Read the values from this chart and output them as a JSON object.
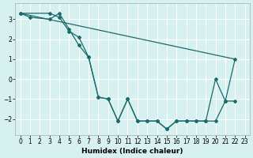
{
  "xlabel": "Humidex (Indice chaleur)",
  "background_color": "#d7f0f0",
  "grid_color": "#ffffff",
  "line_color": "#1a6b6b",
  "ylim": [
    -2.8,
    3.8
  ],
  "xlim": [
    -0.5,
    23.5
  ],
  "yticks": [
    -2,
    -1,
    0,
    1,
    2,
    3
  ],
  "xticks": [
    0,
    1,
    2,
    3,
    4,
    5,
    6,
    7,
    8,
    9,
    10,
    11,
    12,
    13,
    14,
    15,
    16,
    17,
    18,
    19,
    20,
    21,
    22,
    23
  ],
  "line1_x": [
    0,
    1,
    3,
    4,
    5,
    6,
    7,
    8,
    9,
    10,
    11,
    12,
    13,
    14,
    15,
    16,
    17,
    18,
    19,
    20,
    21,
    22
  ],
  "line1_y": [
    3.3,
    3.1,
    3.0,
    3.3,
    2.5,
    1.7,
    1.1,
    -0.9,
    -1.0,
    -2.1,
    -1.0,
    -2.1,
    -2.1,
    -2.1,
    -2.5,
    -2.1,
    -2.1,
    -2.1,
    -2.1,
    0.0,
    -1.1,
    1.0
  ],
  "line2_x": [
    0,
    3,
    4,
    5,
    6,
    7,
    8,
    9,
    10,
    11,
    12,
    13,
    14,
    15,
    16,
    17,
    18,
    19,
    20,
    21,
    22
  ],
  "line2_y": [
    3.3,
    3.3,
    3.1,
    2.4,
    2.1,
    1.1,
    -0.9,
    -1.0,
    -2.1,
    -1.0,
    -2.1,
    -2.1,
    -2.1,
    -2.5,
    -2.1,
    -2.1,
    -2.1,
    -2.1,
    -2.1,
    -1.1,
    -1.1
  ],
  "line3_x": [
    0,
    22
  ],
  "line3_y": [
    3.3,
    1.0
  ],
  "tick_fontsize": 5.5,
  "xlabel_fontsize": 6.5
}
